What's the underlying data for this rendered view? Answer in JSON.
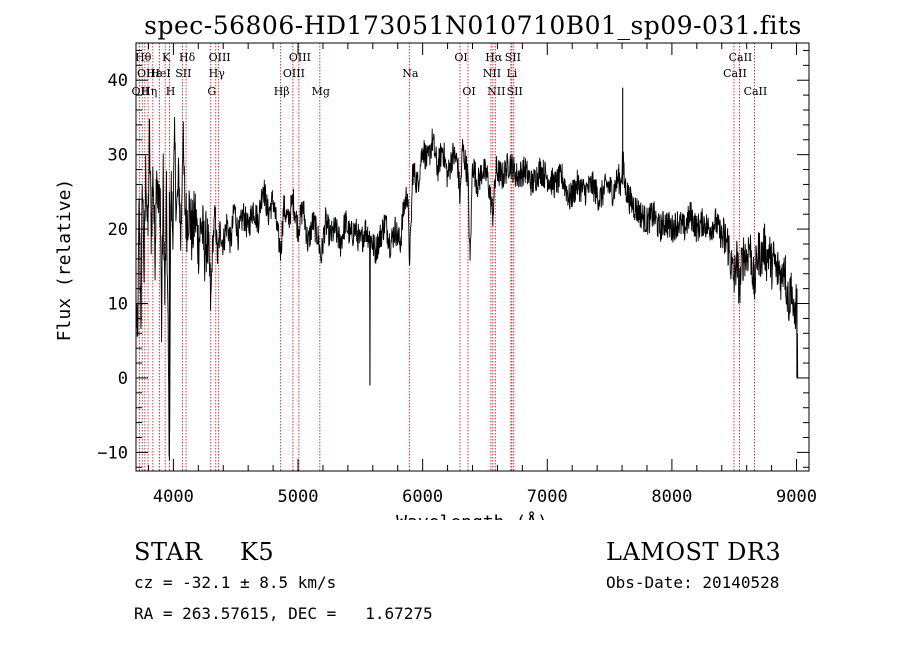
{
  "chart_data": {
    "type": "line",
    "title": "spec-56806-HD173051N010710B01_sp09-031.fits",
    "xlabel": "Wavelength (Å)",
    "ylabel": "Flux (relative)",
    "xlim": [
      3700,
      9100
    ],
    "ylim": [
      -12.5,
      45
    ],
    "x_ticks": [
      4000,
      5000,
      6000,
      7000,
      8000,
      9000
    ],
    "x_tick_labels": [
      "4000",
      "5000",
      "6000",
      "7000",
      "8000",
      "9000"
    ],
    "y_ticks": [
      -10,
      0,
      10,
      20,
      30,
      40
    ],
    "y_tick_labels": [
      "−10",
      "0",
      "10",
      "20",
      "30",
      "40"
    ],
    "grid": false,
    "line_color": "#000000",
    "marker_color": "#cc2222",
    "spectrum_anchors": [
      [
        3700,
        10
      ],
      [
        3712,
        3
      ],
      [
        3725,
        23
      ],
      [
        3740,
        8
      ],
      [
        3752,
        27
      ],
      [
        3765,
        14
      ],
      [
        3780,
        29
      ],
      [
        3795,
        18
      ],
      [
        3808,
        33
      ],
      [
        3822,
        20
      ],
      [
        3838,
        28
      ],
      [
        3852,
        16
      ],
      [
        3866,
        30
      ],
      [
        3880,
        22
      ],
      [
        3895,
        25
      ],
      [
        3905,
        6
      ],
      [
        3918,
        27
      ],
      [
        3932,
        10
      ],
      [
        3945,
        24
      ],
      [
        3958,
        4
      ],
      [
        3968,
        -11
      ],
      [
        3980,
        26
      ],
      [
        3994,
        20
      ],
      [
        4010,
        31
      ],
      [
        4026,
        22
      ],
      [
        4045,
        27
      ],
      [
        4060,
        18
      ],
      [
        4075,
        33
      ],
      [
        4090,
        24
      ],
      [
        4105,
        21
      ],
      [
        4125,
        23
      ],
      [
        4150,
        19
      ],
      [
        4175,
        22
      ],
      [
        4200,
        18
      ],
      [
        4225,
        21
      ],
      [
        4250,
        17
      ],
      [
        4270,
        19
      ],
      [
        4290,
        14
      ],
      [
        4300,
        10
      ],
      [
        4315,
        18
      ],
      [
        4335,
        22
      ],
      [
        4355,
        16
      ],
      [
        4375,
        20
      ],
      [
        4400,
        18
      ],
      [
        4430,
        21
      ],
      [
        4460,
        18
      ],
      [
        4490,
        23
      ],
      [
        4520,
        19
      ],
      [
        4560,
        22
      ],
      [
        4600,
        20
      ],
      [
        4640,
        23
      ],
      [
        4680,
        21
      ],
      [
        4720,
        26
      ],
      [
        4760,
        22
      ],
      [
        4800,
        24
      ],
      [
        4840,
        19
      ],
      [
        4862,
        17
      ],
      [
        4885,
        23
      ],
      [
        4920,
        21
      ],
      [
        4960,
        24
      ],
      [
        5000,
        20
      ],
      [
        5040,
        23
      ],
      [
        5080,
        18
      ],
      [
        5120,
        21
      ],
      [
        5160,
        19
      ],
      [
        5185,
        16
      ],
      [
        5220,
        21
      ],
      [
        5260,
        19
      ],
      [
        5300,
        20
      ],
      [
        5340,
        18
      ],
      [
        5380,
        21
      ],
      [
        5420,
        19
      ],
      [
        5460,
        20
      ],
      [
        5500,
        18
      ],
      [
        5540,
        20
      ],
      [
        5575,
        19
      ],
      [
        5577,
        -1
      ],
      [
        5580,
        19
      ],
      [
        5620,
        17
      ],
      [
        5660,
        19
      ],
      [
        5700,
        21
      ],
      [
        5740,
        18
      ],
      [
        5780,
        20
      ],
      [
        5820,
        18
      ],
      [
        5850,
        23
      ],
      [
        5880,
        25
      ],
      [
        5893,
        16
      ],
      [
        5905,
        19
      ],
      [
        5920,
        28
      ],
      [
        5960,
        26
      ],
      [
        6000,
        31
      ],
      [
        6040,
        29
      ],
      [
        6080,
        32
      ],
      [
        6120,
        28
      ],
      [
        6160,
        31
      ],
      [
        6200,
        27
      ],
      [
        6240,
        30
      ],
      [
        6280,
        29
      ],
      [
        6300,
        24
      ],
      [
        6320,
        31
      ],
      [
        6364,
        27
      ],
      [
        6380,
        15
      ],
      [
        6400,
        29
      ],
      [
        6440,
        26
      ],
      [
        6480,
        28
      ],
      [
        6520,
        27
      ],
      [
        6563,
        22
      ],
      [
        6590,
        28
      ],
      [
        6640,
        27
      ],
      [
        6700,
        29
      ],
      [
        6760,
        27
      ],
      [
        6820,
        28
      ],
      [
        6880,
        26
      ],
      [
        6940,
        28
      ],
      [
        7000,
        27
      ],
      [
        7060,
        26
      ],
      [
        7120,
        27
      ],
      [
        7180,
        24
      ],
      [
        7240,
        26
      ],
      [
        7300,
        25
      ],
      [
        7360,
        26
      ],
      [
        7420,
        24
      ],
      [
        7480,
        26
      ],
      [
        7530,
        25
      ],
      [
        7570,
        27
      ],
      [
        7590,
        26
      ],
      [
        7605,
        30
      ],
      [
        7620,
        26
      ],
      [
        7660,
        24
      ],
      [
        7700,
        23
      ],
      [
        7750,
        22
      ],
      [
        7800,
        21
      ],
      [
        7850,
        22
      ],
      [
        7900,
        20
      ],
      [
        7950,
        21
      ],
      [
        8000,
        20
      ],
      [
        8050,
        21
      ],
      [
        8100,
        20
      ],
      [
        8150,
        22
      ],
      [
        8200,
        20
      ],
      [
        8250,
        21
      ],
      [
        8300,
        20
      ],
      [
        8350,
        21
      ],
      [
        8400,
        19
      ],
      [
        8450,
        18
      ],
      [
        8498,
        13
      ],
      [
        8520,
        16
      ],
      [
        8542,
        12
      ],
      [
        8560,
        15
      ],
      [
        8580,
        17
      ],
      [
        8600,
        16
      ],
      [
        8620,
        18
      ],
      [
        8640,
        16
      ],
      [
        8662,
        12
      ],
      [
        8680,
        16
      ],
      [
        8700,
        17
      ],
      [
        8720,
        16
      ],
      [
        8740,
        18
      ],
      [
        8760,
        16
      ],
      [
        8780,
        17
      ],
      [
        8800,
        15
      ],
      [
        8820,
        16
      ],
      [
        8840,
        14
      ],
      [
        8860,
        15
      ],
      [
        8880,
        13
      ],
      [
        8900,
        16
      ],
      [
        8920,
        12
      ],
      [
        8940,
        10
      ],
      [
        8960,
        13
      ],
      [
        8980,
        7
      ],
      [
        9000,
        11
      ],
      [
        9010,
        0
      ]
    ],
    "spike_lines": [
      {
        "x": 7605,
        "y1": 26,
        "y2": 39
      },
      {
        "x": 5577,
        "y1": 19,
        "y2": -1
      },
      {
        "x": 3968,
        "y1": 25,
        "y2": -11
      },
      {
        "x": 9003,
        "y1": 12,
        "y2": 0
      }
    ],
    "line_markers": [
      {
        "x": 3727,
        "labels": [
          "OII"
        ],
        "row": 2
      },
      {
        "x": 3750,
        "labels": [
          "Hθ"
        ],
        "row": 0
      },
      {
        "x": 3771,
        "labels": [
          "OII"
        ],
        "row": 1
      },
      {
        "x": 3797,
        "labels": [
          "Hη"
        ],
        "row": 2
      },
      {
        "x": 3835,
        "labels": [
          "Hε"
        ],
        "row": 1
      },
      {
        "x": 3889,
        "labels": [
          "HeI"
        ],
        "row": 1
      },
      {
        "x": 3934,
        "labels": [
          "K"
        ],
        "row": 0
      },
      {
        "x": 3969,
        "labels": [
          "H"
        ],
        "row": 2
      },
      {
        "x": 4072,
        "labels": [
          "SII"
        ],
        "row": 1
      },
      {
        "x": 4102,
        "labels": [
          "Hδ"
        ],
        "row": 0
      },
      {
        "x": 4300,
        "labels": [
          "G"
        ],
        "row": 2
      },
      {
        "x": 4340,
        "labels": [
          "Hγ"
        ],
        "row": 1
      },
      {
        "x": 4363,
        "labels": [
          "OIII"
        ],
        "row": 0
      },
      {
        "x": 4861,
        "labels": [
          "Hβ"
        ],
        "row": 2
      },
      {
        "x": 4959,
        "labels": [
          "OIII"
        ],
        "row": 1
      },
      {
        "x": 5007,
        "labels": [
          "OIII"
        ],
        "row": 0
      },
      {
        "x": 5175,
        "labels": [
          "Mg"
        ],
        "row": 2
      },
      {
        "x": 5893,
        "labels": [
          "Na"
        ],
        "row": 1
      },
      {
        "x": 6300,
        "labels": [
          "OI"
        ],
        "row": 0
      },
      {
        "x": 6364,
        "labels": [
          "OI"
        ],
        "row": 2
      },
      {
        "x": 6548,
        "labels": [
          "NII"
        ],
        "row": 1
      },
      {
        "x": 6563,
        "labels": [
          "Hα"
        ],
        "row": 0
      },
      {
        "x": 6583,
        "labels": [
          "NII"
        ],
        "row": 2
      },
      {
        "x": 6708,
        "labels": [
          "Li"
        ],
        "row": 1
      },
      {
        "x": 6716,
        "labels": [
          "SII"
        ],
        "row": 0
      },
      {
        "x": 6731,
        "labels": [
          "SII"
        ],
        "row": 2
      },
      {
        "x": 8498,
        "labels": [
          "CaII"
        ],
        "row": 1
      },
      {
        "x": 8542,
        "labels": [
          "CaII"
        ],
        "row": 0
      },
      {
        "x": 8662,
        "labels": [
          "CaII"
        ],
        "row": 2
      }
    ]
  },
  "info": {
    "object_class": "STAR",
    "subclass": "K5",
    "survey": "LAMOST DR3",
    "redshift_text": "cz = -32.1 ± 8.5 km/s",
    "obs_date": "Obs-Date: 20140528",
    "coords": "RA = 263.57615, DEC =   1.67275"
  }
}
